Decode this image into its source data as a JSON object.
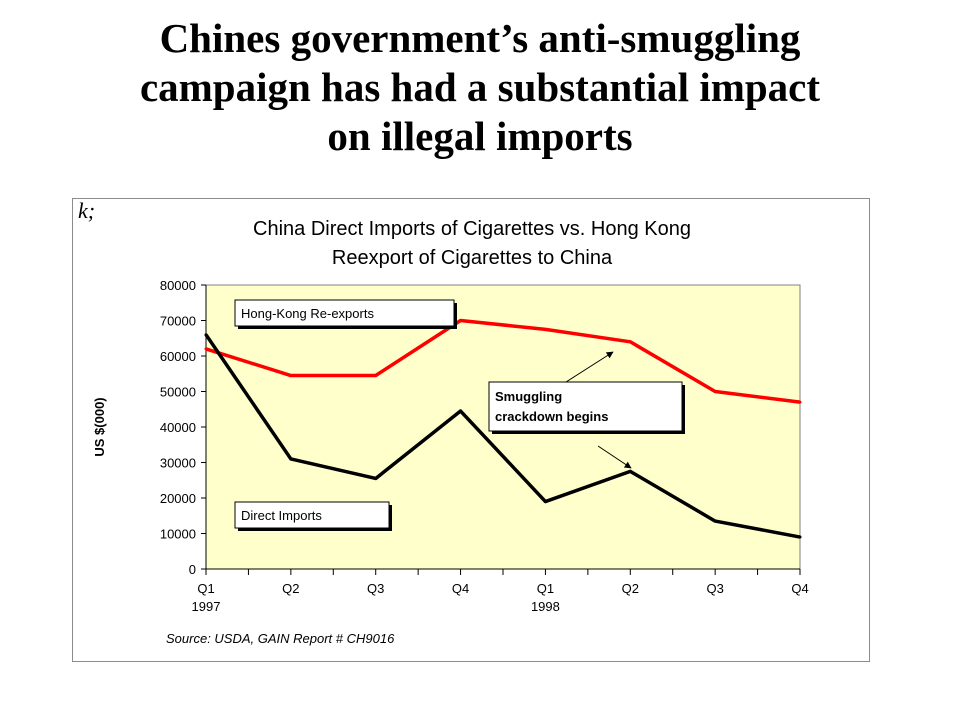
{
  "slide": {
    "title_lines": [
      "Chines government’s anti-smuggling",
      "campaign has had a substantial impact",
      "on illegal imports"
    ],
    "corner_mark": "k;"
  },
  "chart_data": {
    "type": "line",
    "title_lines": [
      "China Direct Imports of Cigarettes vs. Hong Kong",
      "Reexport of Cigarettes to China"
    ],
    "ylabel": "US $(000)",
    "xlabel": "",
    "ylim": [
      0,
      80000
    ],
    "yticks": [
      0,
      10000,
      20000,
      30000,
      40000,
      50000,
      60000,
      70000,
      80000
    ],
    "categories": [
      "Q1",
      "Q2",
      "Q3",
      "Q4",
      "Q1",
      "Q2",
      "Q3",
      "Q4"
    ],
    "year_labels": [
      {
        "index": 0,
        "label": "1997"
      },
      {
        "index": 4,
        "label": "1998"
      }
    ],
    "series": [
      {
        "name": "Hong-Kong Re-exports",
        "color": "#ff0000",
        "values": [
          62000,
          54500,
          54500,
          70000,
          67500,
          64000,
          50000,
          47000
        ]
      },
      {
        "name": "Direct Imports",
        "color": "#000000",
        "values": [
          66000,
          31000,
          25500,
          44500,
          19000,
          27500,
          13500,
          9000
        ]
      }
    ],
    "annotation": {
      "lines": [
        "Smuggling",
        "crackdown begins"
      ],
      "points_to_index": 5
    },
    "source": "Source: USDA, GAIN Report # CH9016",
    "plot_background": "#ffffcc",
    "grid": false
  }
}
